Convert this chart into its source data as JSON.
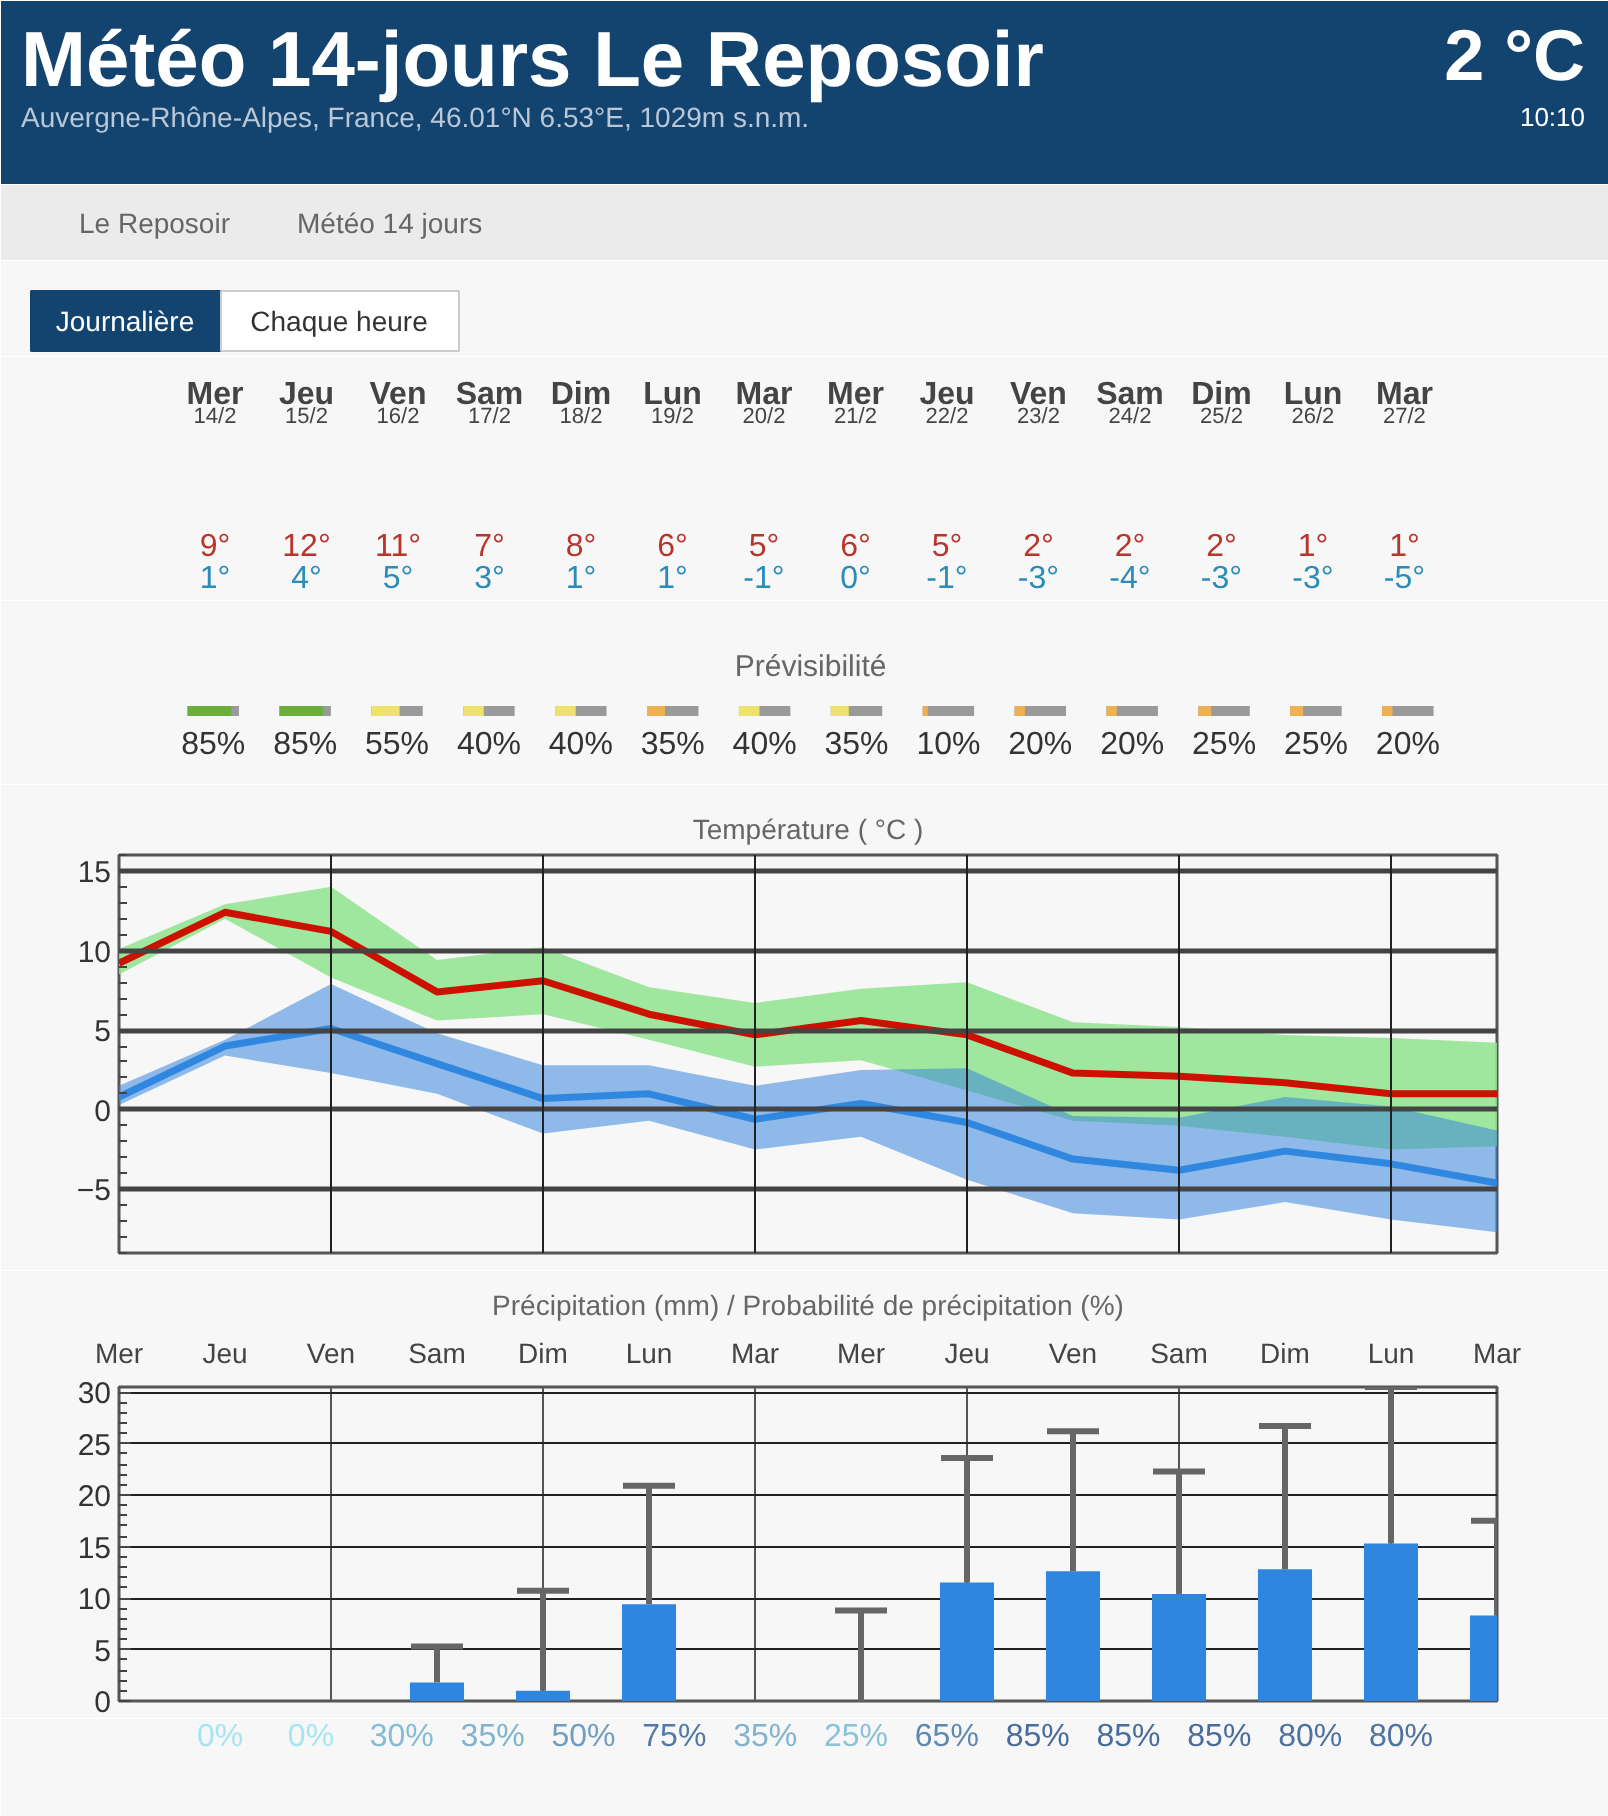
{
  "chart_data": [
    {
      "type": "other",
      "title": "Météo 14-jours Le Reposoir",
      "subtitle": "Auvergne-Rhône-Alpes, France, 46.01°N 6.53°E, 1029m s.n.m.",
      "annotations": [
        "2 °C",
        "10:10",
        "Le Reposoir",
        "Météo 14 jours",
        "Journalière",
        "Chaque heure"
      ]
    },
    {
      "type": "other",
      "categories": [
        "Mer\n14/2",
        "Jeu\n15/2",
        "Ven\n16/2",
        "Sam\n17/2",
        "Dim\n18/2",
        "Lun\n19/2",
        "Mar\n20/2",
        "Mer\n21/2",
        "Jeu\n22/2",
        "Ven\n23/2",
        "Sam\n24/2",
        "Dim\n25/2",
        "Lun\n26/2",
        "Mar\n27/2"
      ],
      "annotations": [
        "9°",
        "12°",
        "11°",
        "7°",
        "8°",
        "6°",
        "5°",
        "6°",
        "5°",
        "2°",
        "2°",
        "2°",
        "1°",
        "1°",
        "1°",
        "4°",
        "5°",
        "3°",
        "1°",
        "1°",
        "-1°",
        "0°",
        "-1°",
        "-3°",
        "-4°",
        "-3°",
        "-3°",
        "-5°"
      ]
    },
    {
      "type": "other",
      "title": "Prévisibilité",
      "colors": [
        "#6aaf3a",
        "#6aaf3a",
        "#efe26a",
        "#efe26a",
        "#efe26a",
        "#efb04f",
        "#efe26a",
        "#efe26a",
        "#efb04f",
        "#efb04f",
        "#efb04f",
        "#efb04f",
        "#efb04f",
        "#efb04f"
      ],
      "values": [
        85,
        85,
        55,
        40,
        40,
        35,
        40,
        35,
        10,
        20,
        20,
        25,
        25,
        20
      ],
      "value_labels": [
        "85%",
        "85%",
        "55%",
        "40%",
        "40%",
        "35%",
        "40%",
        "35%",
        "10%",
        "20%",
        "20%",
        "25%",
        "25%",
        "20%"
      ]
    },
    {
      "type": "line",
      "title": "Température ( °C )",
      "categories": [
        null,
        null,
        null,
        null,
        null,
        null,
        null,
        null,
        null,
        null,
        null,
        null,
        null,
        null
      ],
      "series": [
        {
          "color": "#cc1100",
          "values": [
            9.2,
            12.4,
            11.2,
            7.4,
            8.1,
            6.0,
            4.7,
            5.6,
            4.7,
            2.3,
            2.1,
            1.7,
            1.0,
            1.0
          ],
          "lower": [
            8.5,
            12.0,
            8.3,
            5.6,
            6.0,
            4.4,
            2.7,
            3.1,
            1.2,
            -0.7,
            -1.0,
            -1.7,
            -2.5,
            -2.3
          ],
          "upper": [
            10.1,
            12.9,
            14.0,
            9.4,
            10.2,
            7.7,
            6.7,
            7.6,
            8.0,
            5.5,
            5.2,
            4.7,
            4.5,
            4.2
          ]
        },
        {
          "color": "#2f87e0",
          "values": [
            0.8,
            4.0,
            5.1,
            2.9,
            0.7,
            1.0,
            -0.6,
            0.4,
            -0.8,
            -3.1,
            -3.8,
            -2.6,
            -3.4,
            -4.6
          ],
          "lower": [
            0.3,
            3.4,
            2.3,
            1.0,
            -1.5,
            -0.7,
            -2.5,
            -1.7,
            -4.4,
            -6.5,
            -6.9,
            -5.8,
            -6.9,
            -7.7
          ],
          "upper": [
            1.5,
            4.4,
            7.9,
            4.8,
            2.8,
            2.8,
            1.5,
            2.5,
            2.6,
            -0.4,
            -0.5,
            0.8,
            0.2,
            -1.3
          ]
        }
      ],
      "ylim": [
        -9,
        16
      ],
      "yticks": [
        -5,
        0,
        5,
        10,
        15
      ],
      "grid": true
    },
    {
      "type": "bar",
      "title": "Précipitation (mm) / Probabilité de précipitation (%)",
      "categories": [
        "Mer",
        "Jeu",
        "Ven",
        "Sam",
        "Dim",
        "Lun",
        "Mar",
        "Mer",
        "Jeu",
        "Ven",
        "Sam",
        "Dim",
        "Lun",
        "Mar"
      ],
      "series": [
        {
          "color": "#2e86de",
          "values": [
            0,
            0,
            0,
            1.8,
            1,
            9.4,
            0,
            0,
            11.5,
            12.6,
            10.4,
            12.8,
            15.3,
            8.3
          ],
          "errors": [
            null,
            null,
            null,
            [
              1.8,
              5.3
            ],
            [
              1,
              10.7
            ],
            [
              9.4,
              20.9
            ],
            null,
            [
              0,
              8.8
            ],
            [
              11.5,
              23.6
            ],
            [
              12.6,
              26.2
            ],
            [
              10.4,
              22.3
            ],
            [
              12.8,
              26.7
            ],
            [
              15.3,
              30.5
            ],
            [
              8.3,
              17.5
            ]
          ]
        }
      ],
      "ylim": [
        0,
        30.5
      ],
      "yticks": [
        0,
        5,
        10,
        15,
        20,
        25,
        30
      ],
      "grid": true
    },
    {
      "type": "other",
      "values": [
        0,
        0,
        30,
        35,
        50,
        75,
        35,
        25,
        65,
        85,
        85,
        85,
        80,
        80
      ],
      "value_labels": [
        "0%",
        "0%",
        "30%",
        "35%",
        "50%",
        "75%",
        "35%",
        "25%",
        "65%",
        "85%",
        "85%",
        "85%",
        "80%",
        "80%"
      ]
    }
  ]
}
